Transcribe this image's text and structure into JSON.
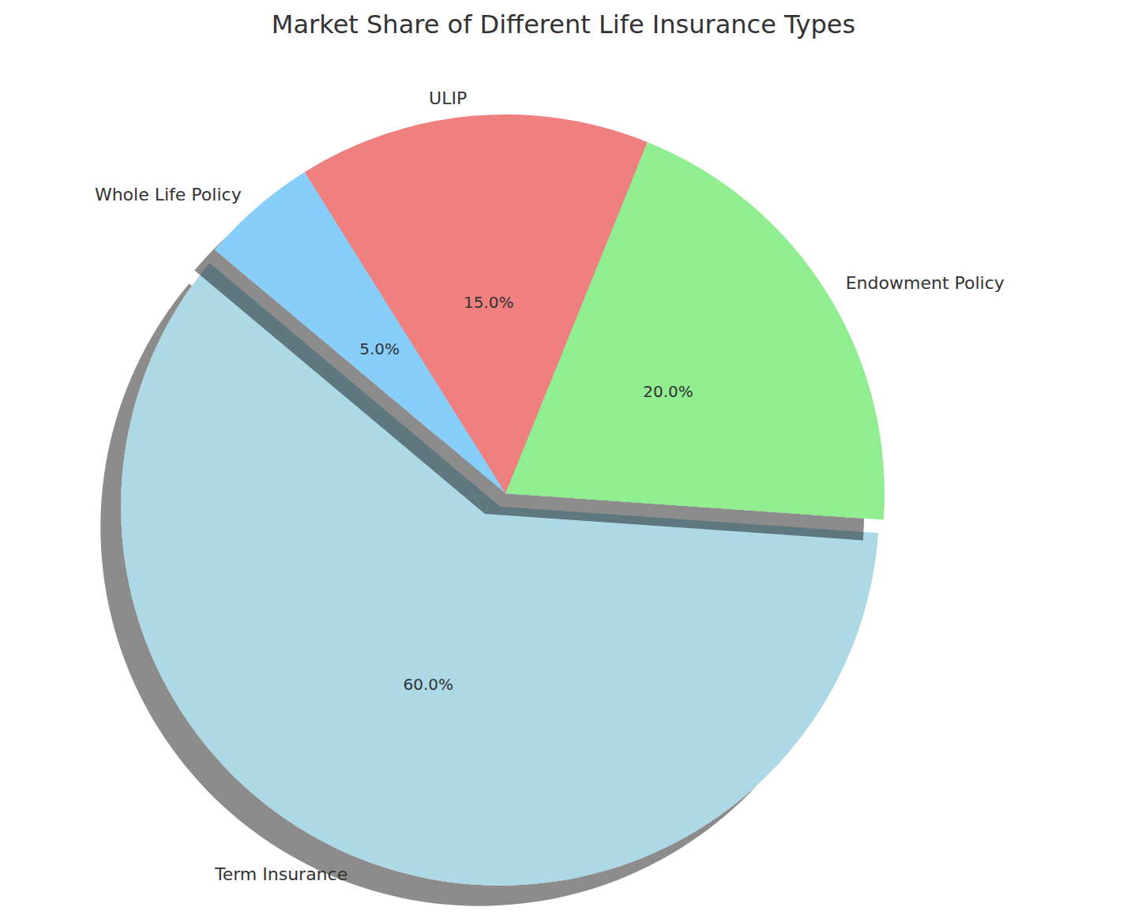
{
  "chart_data": {
    "type": "pie",
    "title": "Market Share of Different Life Insurance Types",
    "categories": [
      "Term Insurance",
      "Endowment Policy",
      "ULIP",
      "Whole Life Policy"
    ],
    "values": [
      60,
      20,
      15,
      5
    ],
    "value_labels": [
      "60.0%",
      "20.0%",
      "15.0%",
      "5.0%"
    ],
    "colors": [
      "#add8e6",
      "#90ee90",
      "#f08080",
      "#87cefa"
    ],
    "data_labels": true
  }
}
